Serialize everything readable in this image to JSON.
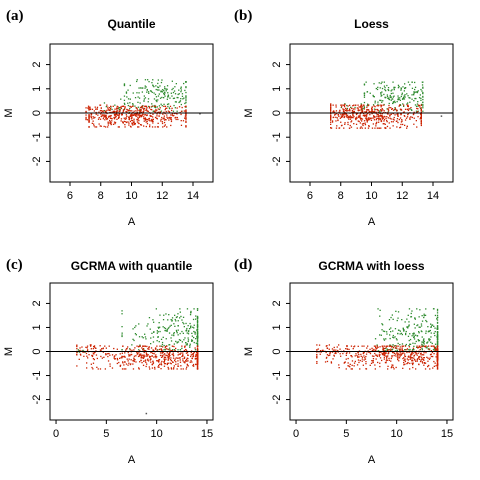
{
  "chart_data": [
    {
      "type": "scatter",
      "panel_label": "(a)",
      "title": "Quantile",
      "xlabel": "A",
      "ylabel": "M",
      "xlim": [
        4.7,
        15.3
      ],
      "ylim": [
        -2.85,
        2.85
      ],
      "xticks": [
        "6",
        "8",
        "10",
        "12",
        "14"
      ],
      "yticks": [
        "-2",
        "-1",
        "0",
        "1",
        "2"
      ],
      "reference_line_y": 0,
      "series": [
        {
          "color": "#2e8b2e",
          "clouds": [
            {
              "x": [
                9.5,
                13.5
              ],
              "y": [
                0.1,
                1.4
              ],
              "n": 190,
              "cx": 11.8,
              "cy": 0.75
            },
            {
              "x": [
                8.2,
                10.5
              ],
              "y": [
                0.05,
                0.6
              ],
              "n": 20,
              "cx": 9.3,
              "cy": 0.25
            }
          ]
        },
        {
          "color": "#cc2200",
          "clouds": [
            {
              "x": [
                7.2,
                13.5
              ],
              "y": [
                -0.55,
                0.3
              ],
              "n": 460,
              "cx": 10.3,
              "cy": -0.1
            },
            {
              "x": [
                7.0,
                9.0
              ],
              "y": [
                -0.25,
                0.35
              ],
              "n": 60,
              "cx": 8.0,
              "cy": 0.05
            }
          ]
        }
      ],
      "outliers": [
        {
          "x": 14.4,
          "y": 0.0
        }
      ]
    },
    {
      "type": "scatter",
      "panel_label": "(b)",
      "title": "Loess",
      "xlabel": "A",
      "ylabel": "M",
      "xlim": [
        4.7,
        15.3
      ],
      "ylim": [
        -2.85,
        2.85
      ],
      "xticks": [
        "6",
        "8",
        "10",
        "12",
        "14"
      ],
      "yticks": [
        "-2",
        "-1",
        "0",
        "1",
        "2"
      ],
      "reference_line_y": 0,
      "series": [
        {
          "color": "#2e8b2e",
          "clouds": [
            {
              "x": [
                9.5,
                13.3
              ],
              "y": [
                0.1,
                1.3
              ],
              "n": 190,
              "cx": 11.6,
              "cy": 0.7
            },
            {
              "x": [
                8.0,
                10.5
              ],
              "y": [
                0.05,
                0.55
              ],
              "n": 20,
              "cx": 9.2,
              "cy": 0.25
            }
          ]
        },
        {
          "color": "#cc2200",
          "clouds": [
            {
              "x": [
                7.3,
                13.2
              ],
              "y": [
                -0.6,
                0.35
              ],
              "n": 460,
              "cx": 10.2,
              "cy": -0.1
            },
            {
              "x": [
                7.3,
                9.3
              ],
              "y": [
                -0.2,
                0.4
              ],
              "n": 60,
              "cx": 8.3,
              "cy": 0.1
            }
          ]
        }
      ],
      "outliers": [
        {
          "x": 14.5,
          "y": -0.1
        }
      ]
    },
    {
      "type": "scatter",
      "panel_label": "(c)",
      "title": "GCRMA with quantile",
      "xlabel": "A",
      "ylabel": "M",
      "xlim": [
        -0.6,
        15.6
      ],
      "ylim": [
        -2.85,
        2.85
      ],
      "xticks": [
        "0",
        "5",
        "10",
        "15"
      ],
      "yticks": [
        "-2",
        "-1",
        "0",
        "1",
        "2"
      ],
      "reference_line_y": 0,
      "series": [
        {
          "color": "#2e8b2e",
          "clouds": [
            {
              "x": [
                6.5,
                14.0
              ],
              "y": [
                0.1,
                1.8
              ],
              "n": 260,
              "cx": 12.0,
              "cy": 0.8
            },
            {
              "x": [
                2.0,
                3.0
              ],
              "y": [
                0.0,
                0.15
              ],
              "n": 10,
              "cx": 2.4,
              "cy": 0.05
            }
          ]
        },
        {
          "color": "#cc2200",
          "clouds": [
            {
              "x": [
                2.0,
                14.0
              ],
              "y": [
                -0.7,
                0.25
              ],
              "n": 520,
              "cx": 10.5,
              "cy": -0.2
            },
            {
              "x": [
                2.0,
                5.0
              ],
              "y": [
                -0.3,
                0.3
              ],
              "n": 40,
              "cx": 3.0,
              "cy": 0.05
            }
          ]
        }
      ],
      "outliers": [
        {
          "x": 8.9,
          "y": -2.55
        }
      ]
    },
    {
      "type": "scatter",
      "panel_label": "(d)",
      "title": "GCRMA with loess",
      "xlabel": "A",
      "ylabel": "M",
      "xlim": [
        -0.6,
        15.6
      ],
      "ylim": [
        -2.85,
        2.85
      ],
      "xticks": [
        "0",
        "5",
        "10",
        "15"
      ],
      "yticks": [
        "-2",
        "-1",
        "0",
        "1",
        "2"
      ],
      "reference_line_y": 0,
      "series": [
        {
          "color": "#2e8b2e",
          "clouds": [
            {
              "x": [
                7.5,
                14.0
              ],
              "y": [
                0.1,
                1.8
              ],
              "n": 260,
              "cx": 12.3,
              "cy": 0.8
            },
            {
              "x": [
                8.0,
                10.0
              ],
              "y": [
                0.05,
                0.5
              ],
              "n": 20,
              "cx": 9.0,
              "cy": 0.2
            }
          ]
        },
        {
          "color": "#cc2200",
          "clouds": [
            {
              "x": [
                2.0,
                14.0
              ],
              "y": [
                -0.7,
                0.25
              ],
              "n": 520,
              "cx": 10.5,
              "cy": -0.15
            },
            {
              "x": [
                2.0,
                5.0
              ],
              "y": [
                -0.25,
                0.3
              ],
              "n": 40,
              "cx": 3.0,
              "cy": 0.05
            }
          ]
        }
      ],
      "outliers": []
    }
  ]
}
